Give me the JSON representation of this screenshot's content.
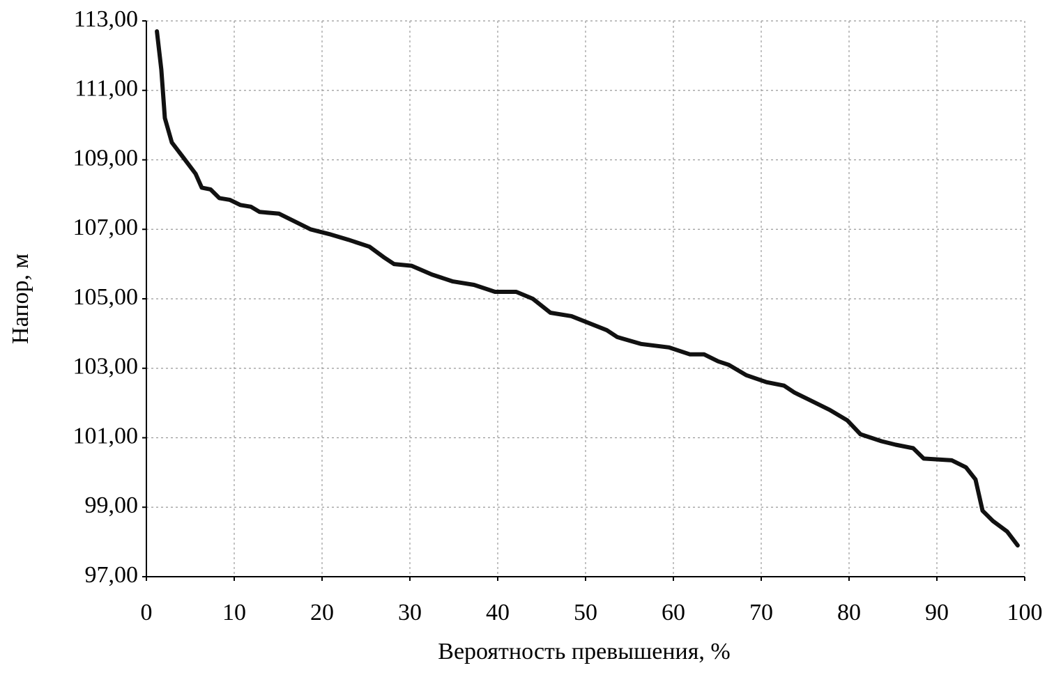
{
  "chart_data": {
    "type": "line",
    "x_label": "Вероятность превышения, %",
    "y_label": "Напор, м",
    "xlim": [
      0,
      100
    ],
    "xticks": [
      0,
      10,
      20,
      30,
      40,
      50,
      60,
      70,
      80,
      90,
      100
    ],
    "ylim": [
      97,
      113
    ],
    "yticks": [
      {
        "value": 97,
        "label": "97,00"
      },
      {
        "value": 99,
        "label": "99,00"
      },
      {
        "value": 101,
        "label": "101,00"
      },
      {
        "value": 103,
        "label": "103,00"
      },
      {
        "value": 105,
        "label": "105,00"
      },
      {
        "value": 107,
        "label": "107,00"
      },
      {
        "value": 109,
        "label": "109,00"
      },
      {
        "value": 111,
        "label": "111,00"
      },
      {
        "value": 113,
        "label": "113,00"
      }
    ],
    "grid": true,
    "color": "#111111",
    "x": [
      1.2,
      1.7,
      2.1,
      2.9,
      4.1,
      5.6,
      6.3,
      7.3,
      8.3,
      9.5,
      10.7,
      11.9,
      12.9,
      15.1,
      17.1,
      18.7,
      21.0,
      23.0,
      25.4,
      27.0,
      28.2,
      30.2,
      32.5,
      34.9,
      37.3,
      39.7,
      42.1,
      44.0,
      46.0,
      48.4,
      50.4,
      52.4,
      53.6,
      56.3,
      59.5,
      61.9,
      63.5,
      65.1,
      66.3,
      68.3,
      70.6,
      72.6,
      73.8,
      75.4,
      77.8,
      79.8,
      81.3,
      83.7,
      85.3,
      87.3,
      88.5,
      91.7,
      93.3,
      94.4,
      95.2,
      96.4,
      98.0,
      99.2
    ],
    "values": [
      112.7,
      111.6,
      110.2,
      109.5,
      109.1,
      108.6,
      108.2,
      108.15,
      107.9,
      107.85,
      107.7,
      107.65,
      107.5,
      107.45,
      107.2,
      107.0,
      106.85,
      106.7,
      106.5,
      106.2,
      106.0,
      105.95,
      105.7,
      105.5,
      105.4,
      105.2,
      105.2,
      105.0,
      104.6,
      104.5,
      104.3,
      104.1,
      103.9,
      103.7,
      103.6,
      103.4,
      103.4,
      103.2,
      103.1,
      102.8,
      102.6,
      102.5,
      102.3,
      102.1,
      101.8,
      101.5,
      101.1,
      100.9,
      100.8,
      100.7,
      100.4,
      100.35,
      100.15,
      99.8,
      98.9,
      98.6,
      98.3,
      97.9
    ]
  }
}
